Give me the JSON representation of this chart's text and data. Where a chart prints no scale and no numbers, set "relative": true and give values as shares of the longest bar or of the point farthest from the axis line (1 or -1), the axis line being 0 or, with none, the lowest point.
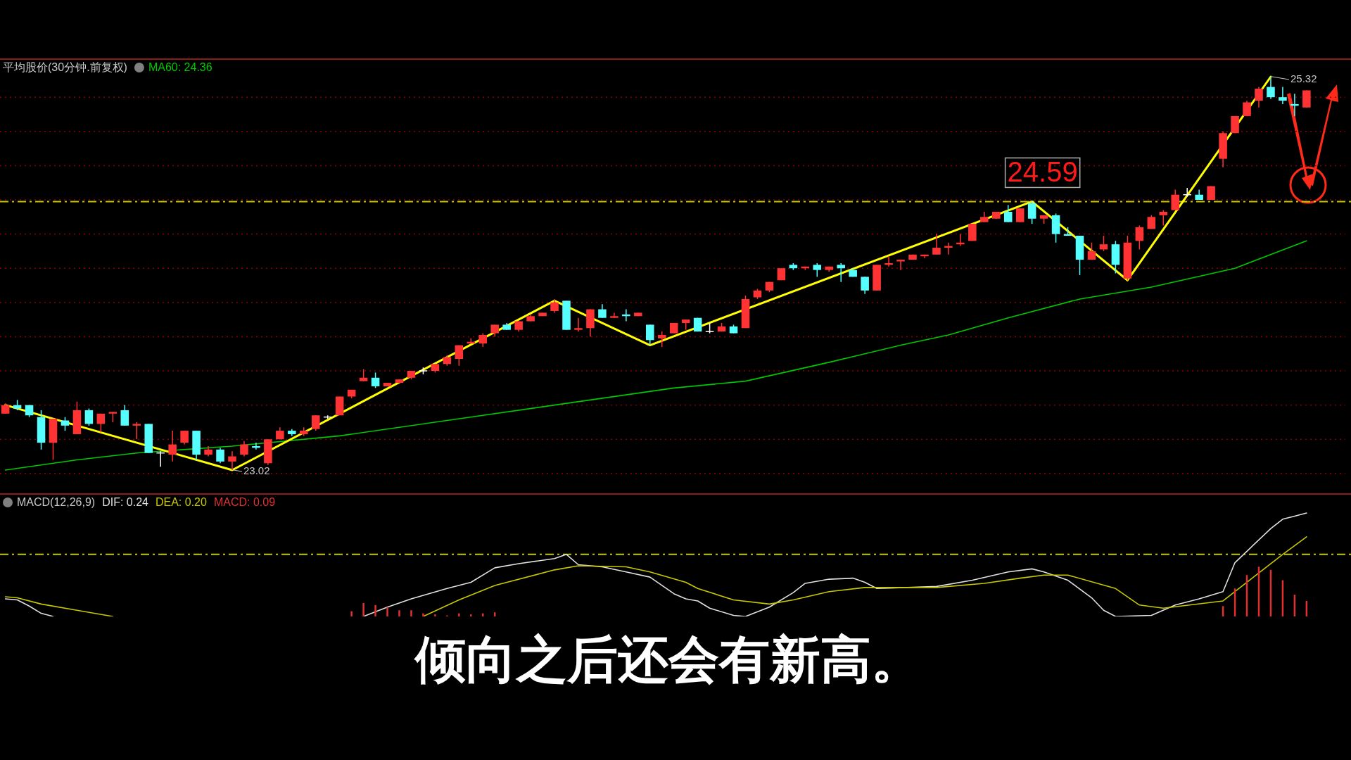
{
  "chart_data": [
    {
      "type": "candlestick",
      "title": "平均股价(30分钟.前复权)",
      "categories": [
        null,
        null,
        null,
        null,
        null,
        null,
        null,
        null,
        null,
        null,
        null,
        null,
        null,
        null,
        null,
        null,
        null,
        null,
        null,
        null,
        null,
        null,
        null,
        null,
        null,
        null,
        null,
        null,
        null,
        null,
        null,
        null,
        null,
        null,
        null,
        null,
        null,
        null,
        null,
        null,
        null,
        null,
        null,
        null,
        null,
        null,
        null,
        null,
        null,
        null,
        null,
        null,
        null,
        null,
        null,
        null,
        null,
        null,
        null,
        null,
        null,
        null,
        null,
        null,
        null,
        null,
        null,
        null,
        null,
        null,
        null,
        null,
        null,
        null,
        null,
        null,
        null,
        null,
        null,
        null,
        null,
        null,
        null,
        null,
        null,
        null,
        null,
        null,
        null,
        null,
        null,
        null,
        null,
        null,
        null,
        null,
        null,
        null,
        null,
        null,
        null,
        null,
        null,
        null,
        null,
        null,
        null,
        null,
        null,
        null
      ],
      "ohlc": [
        [
          23.35,
          23.41,
          23.35,
          23.4
        ],
        [
          23.4,
          23.43,
          23.37,
          23.38
        ],
        [
          23.4,
          23.4,
          23.33,
          23.34
        ],
        [
          23.33,
          23.37,
          23.14,
          23.18
        ],
        [
          23.18,
          23.32,
          23.08,
          23.32
        ],
        [
          23.31,
          23.33,
          23.25,
          23.28
        ],
        [
          23.23,
          23.42,
          23.23,
          23.37
        ],
        [
          23.37,
          23.38,
          23.28,
          23.29
        ],
        [
          23.29,
          23.35,
          23.24,
          23.35
        ],
        [
          23.35,
          23.36,
          23.3,
          23.36
        ],
        [
          23.37,
          23.4,
          23.28,
          23.28
        ],
        [
          23.28,
          23.3,
          23.2,
          23.29
        ],
        [
          23.29,
          23.29,
          23.12,
          23.12
        ],
        [
          23.12,
          23.13,
          23.04,
          23.12
        ],
        [
          23.11,
          23.25,
          23.07,
          23.17
        ],
        [
          23.18,
          23.25,
          23.17,
          23.25
        ],
        [
          23.25,
          23.25,
          23.08,
          23.11
        ],
        [
          23.11,
          23.16,
          23.1,
          23.14
        ],
        [
          23.14,
          23.15,
          23.06,
          23.07
        ],
        [
          23.07,
          23.13,
          23.02,
          23.1
        ],
        [
          23.11,
          23.19,
          23.1,
          23.17
        ],
        [
          23.16,
          23.18,
          23.14,
          23.15
        ],
        [
          23.06,
          23.2,
          23.05,
          23.2
        ],
        [
          23.2,
          23.27,
          23.2,
          23.25
        ],
        [
          23.25,
          23.26,
          23.22,
          23.23
        ],
        [
          23.23,
          23.27,
          23.22,
          23.25
        ],
        [
          23.26,
          23.34,
          23.25,
          23.34
        ],
        [
          23.33,
          23.34,
          23.32,
          23.33
        ],
        [
          23.34,
          23.45,
          23.34,
          23.45
        ],
        [
          23.45,
          23.49,
          23.44,
          23.49
        ],
        [
          23.54,
          23.61,
          23.54,
          23.56
        ],
        [
          23.56,
          23.59,
          23.5,
          23.51
        ],
        [
          23.51,
          23.53,
          23.51,
          23.53
        ],
        [
          23.53,
          23.55,
          23.53,
          23.55
        ],
        [
          23.56,
          23.6,
          23.55,
          23.6
        ],
        [
          23.6,
          23.62,
          23.58,
          23.6
        ],
        [
          23.6,
          23.64,
          23.59,
          23.64
        ],
        [
          23.64,
          23.69,
          23.63,
          23.68
        ],
        [
          23.67,
          23.75,
          23.63,
          23.75
        ],
        [
          23.76,
          23.79,
          23.76,
          23.77
        ],
        [
          23.76,
          23.82,
          23.74,
          23.81
        ],
        [
          23.82,
          23.87,
          23.8,
          23.87
        ],
        [
          23.87,
          23.88,
          23.84,
          23.84
        ],
        [
          23.84,
          23.89,
          23.83,
          23.89
        ],
        [
          23.89,
          23.93,
          23.89,
          23.92
        ],
        [
          23.92,
          23.94,
          23.92,
          23.94
        ],
        [
          23.95,
          24.02,
          23.94,
          24.0
        ],
        [
          24.01,
          24.01,
          23.84,
          23.84
        ],
        [
          23.84,
          23.91,
          23.83,
          23.85
        ],
        [
          23.85,
          23.96,
          23.8,
          23.96
        ],
        [
          23.96,
          23.99,
          23.91,
          23.91
        ],
        [
          23.91,
          23.94,
          23.91,
          23.92
        ],
        [
          23.93,
          23.96,
          23.89,
          23.92
        ],
        [
          23.92,
          23.94,
          23.92,
          23.94
        ],
        [
          23.87,
          23.87,
          23.75,
          23.78
        ],
        [
          23.79,
          23.83,
          23.74,
          23.81
        ],
        [
          23.82,
          23.88,
          23.82,
          23.88
        ],
        [
          23.88,
          23.9,
          23.84,
          23.9
        ],
        [
          23.91,
          23.91,
          23.83,
          23.83
        ],
        [
          23.83,
          23.88,
          23.82,
          23.83
        ],
        [
          23.83,
          23.88,
          23.83,
          23.86
        ],
        [
          23.86,
          23.87,
          23.82,
          23.82
        ],
        [
          23.85,
          24.04,
          23.85,
          24.02
        ],
        [
          24.03,
          24.08,
          24.02,
          24.07
        ],
        [
          24.07,
          24.12,
          24.06,
          24.12
        ],
        [
          24.13,
          24.2,
          24.13,
          24.2
        ],
        [
          24.22,
          24.23,
          24.19,
          24.2
        ],
        [
          24.2,
          24.21,
          24.19,
          24.21
        ],
        [
          24.22,
          24.23,
          24.15,
          24.19
        ],
        [
          24.19,
          24.21,
          24.18,
          24.21
        ],
        [
          24.22,
          24.23,
          24.12,
          24.2
        ],
        [
          24.19,
          24.2,
          24.15,
          24.15
        ],
        [
          24.15,
          24.15,
          24.05,
          24.07
        ],
        [
          24.07,
          24.22,
          24.07,
          24.22
        ],
        [
          24.22,
          24.27,
          24.21,
          24.23
        ],
        [
          24.24,
          24.25,
          24.19,
          24.25
        ],
        [
          24.25,
          24.28,
          24.25,
          24.28
        ],
        [
          24.27,
          24.28,
          24.26,
          24.28
        ],
        [
          24.28,
          24.4,
          24.28,
          24.32
        ],
        [
          24.32,
          24.35,
          24.28,
          24.33
        ],
        [
          24.34,
          24.4,
          24.33,
          24.35
        ],
        [
          24.36,
          24.46,
          24.36,
          24.46
        ],
        [
          24.47,
          24.53,
          24.47,
          24.5
        ],
        [
          24.49,
          24.53,
          24.49,
          24.53
        ],
        [
          24.53,
          24.57,
          24.47,
          24.47
        ],
        [
          24.47,
          24.55,
          24.47,
          24.55
        ],
        [
          24.58,
          24.59,
          24.46,
          24.49
        ],
        [
          24.49,
          24.51,
          24.46,
          24.51
        ],
        [
          24.51,
          24.52,
          24.35,
          24.4
        ],
        [
          24.4,
          24.44,
          24.39,
          24.39
        ],
        [
          24.39,
          24.39,
          24.16,
          24.25
        ],
        [
          24.25,
          24.35,
          24.25,
          24.3
        ],
        [
          24.31,
          24.39,
          24.3,
          24.34
        ],
        [
          24.34,
          24.36,
          24.17,
          24.22
        ],
        [
          24.14,
          24.39,
          24.13,
          24.35
        ],
        [
          24.36,
          24.45,
          24.31,
          24.44
        ],
        [
          24.43,
          24.51,
          24.43,
          24.5
        ],
        [
          24.51,
          24.54,
          24.45,
          24.53
        ],
        [
          24.54,
          24.66,
          24.54,
          24.63
        ],
        [
          24.63,
          24.67,
          24.62,
          24.63
        ],
        [
          24.63,
          24.66,
          24.6,
          24.6
        ],
        [
          24.6,
          24.68,
          24.6,
          24.68
        ],
        [
          24.84,
          25.0,
          24.79,
          24.99
        ],
        [
          24.99,
          25.09,
          24.99,
          25.09
        ],
        [
          25.09,
          25.18,
          25.09,
          25.17
        ],
        [
          25.18,
          25.26,
          25.14,
          25.25
        ],
        [
          25.26,
          25.32,
          25.19,
          25.2
        ],
        [
          25.2,
          25.26,
          25.16,
          25.18
        ],
        [
          25.16,
          25.22,
          25.09,
          25.15
        ],
        [
          25.14,
          25.24,
          25.14,
          25.24
        ]
      ],
      "colors": [
        "#ff3333",
        "#55ffff",
        "#55ffff",
        "#55ffff",
        "#ff3333",
        "#55ffff",
        "#ff3333",
        "#55ffff",
        "#ff3333",
        "#ff3333",
        "#55ffff",
        "#ff3333",
        "#55ffff",
        "#ffffff",
        "#ff3333",
        "#ff3333",
        "#55ffff",
        "#ff3333",
        "#55ffff",
        "#ff3333",
        "#ff3333",
        "#55ffff",
        "#ff3333",
        "#ff3333",
        "#55ffff",
        "#ff3333",
        "#ff3333",
        "#ffffff",
        "#ff3333",
        "#ff3333",
        "#ff3333",
        "#55ffff",
        "#ff3333",
        "#ff3333",
        "#ff3333",
        "#ffffff",
        "#ff3333",
        "#ff3333",
        "#ff3333",
        "#ff3333",
        "#ff3333",
        "#ff3333",
        "#55ffff",
        "#ff3333",
        "#ff3333",
        "#ff3333",
        "#ff3333",
        "#55ffff",
        "#ff3333",
        "#ff3333",
        "#55ffff",
        "#ff3333",
        "#55ffff",
        "#ff3333",
        "#55ffff",
        "#ff3333",
        "#ff3333",
        "#ff3333",
        "#55ffff",
        "#ffffff",
        "#ff3333",
        "#55ffff",
        "#ff3333",
        "#ff3333",
        "#ff3333",
        "#ff3333",
        "#55ffff",
        "#ff3333",
        "#55ffff",
        "#ff3333",
        "#55ffff",
        "#55ffff",
        "#55ffff",
        "#ff3333",
        "#ff3333",
        "#ff3333",
        "#ff3333",
        "#ff3333",
        "#ff3333",
        "#ff3333",
        "#ff3333",
        "#ff3333",
        "#ff3333",
        "#ff3333",
        "#55ffff",
        "#ff3333",
        "#55ffff",
        "#ff3333",
        "#55ffff",
        "#55ffff",
        "#55ffff",
        "#ff3333",
        "#ff3333",
        "#55ffff",
        "#ff3333",
        "#ff3333",
        "#ff3333",
        "#ff3333",
        "#ff3333",
        "#ffffff",
        "#55ffff",
        "#ff3333",
        "#ff3333",
        "#ff3333",
        "#ff3333",
        "#ff3333",
        "#55ffff",
        "#55ffff",
        "#55ffff",
        "#ff3333"
      ],
      "series": [
        {
          "name": "MA60: 24.36",
          "type": "line",
          "color": "#00c800",
          "values": [
            23.02,
            null,
            null,
            null,
            null,
            null,
            23.08,
            null,
            null,
            null,
            null,
            23.12,
            null,
            null,
            null,
            null,
            null,
            null,
            null,
            23.16,
            null,
            null,
            null,
            null,
            null,
            null,
            null,
            null,
            23.22,
            null,
            null,
            null,
            null,
            null,
            null,
            null,
            null,
            23.31,
            null,
            null,
            null,
            null,
            null,
            null,
            null,
            null,
            23.4,
            null,
            null,
            null,
            null,
            null,
            null,
            null,
            null,
            null,
            23.5,
            null,
            null,
            null,
            null,
            null,
            23.54,
            null,
            null,
            null,
            null,
            null,
            null,
            23.65,
            null,
            null,
            null,
            null,
            null,
            23.75,
            null,
            null,
            null,
            23.81,
            null,
            null,
            null,
            null,
            23.91,
            null,
            null,
            null,
            null,
            null,
            24.02,
            null,
            null,
            null,
            null,
            null,
            24.09,
            null,
            null,
            null,
            null,
            null,
            null,
            24.2,
            null,
            null,
            null,
            null,
            null,
            24.36
          ]
        },
        {
          "type": "line",
          "color": "#ffff00",
          "values": [
            23.4,
            null,
            null,
            null,
            null,
            null,
            null,
            null,
            null,
            null,
            null,
            null,
            null,
            null,
            null,
            null,
            null,
            null,
            null,
            23.02,
            null,
            null,
            null,
            null,
            null,
            null,
            null,
            null,
            null,
            null,
            null,
            null,
            null,
            null,
            null,
            null,
            null,
            null,
            null,
            null,
            null,
            null,
            null,
            null,
            null,
            null,
            24.01,
            null,
            null,
            null,
            null,
            null,
            null,
            null,
            23.75,
            null,
            null,
            null,
            null,
            null,
            null,
            null,
            null,
            null,
            null,
            null,
            null,
            null,
            null,
            null,
            null,
            null,
            null,
            null,
            null,
            null,
            null,
            null,
            null,
            null,
            null,
            null,
            null,
            null,
            null,
            null,
            24.59,
            null,
            null,
            null,
            null,
            null,
            null,
            null,
            24.13,
            null,
            null,
            null,
            null,
            null,
            null,
            null,
            null,
            null,
            null,
            null,
            25.32,
            null,
            null,
            null
          ]
        }
      ],
      "yticks": [
        {
          "value": 23.0,
          "label": null
        },
        {
          "value": 23.2,
          "label": null
        },
        {
          "value": 23.4,
          "label": null
        },
        {
          "value": 23.6,
          "label": null
        },
        {
          "value": 23.8,
          "label": null
        },
        {
          "value": 24.0,
          "label": null
        },
        {
          "value": 24.2,
          "label": null
        },
        {
          "value": 24.4,
          "label": null
        },
        {
          "value": 24.6,
          "label": null
        },
        {
          "value": 24.8,
          "label": null
        },
        {
          "value": 25.0,
          "label": null
        },
        {
          "value": 25.2,
          "label": null
        }
      ],
      "grid": "y",
      "ref_lines": [
        {
          "axis": "y",
          "value": 24.59,
          "label": "24.59",
          "color": "#c8c800",
          "line_style": "dashed"
        }
      ],
      "annotations": [
        "23.02",
        "25.32"
      ]
    },
    {
      "type": "line",
      "title": "MACD(12,26,9)",
      "relative": true,
      "categories": [
        null,
        null,
        null,
        null,
        null,
        null,
        null,
        null,
        null,
        null,
        null,
        null,
        null,
        null,
        null,
        null,
        null,
        null,
        null,
        null,
        null,
        null,
        null,
        null,
        null,
        null,
        null,
        null,
        null,
        null,
        null,
        null,
        null,
        null,
        null,
        null,
        null,
        null,
        null,
        null,
        null,
        null,
        null,
        null,
        null,
        null,
        null,
        null,
        null,
        null,
        null,
        null,
        null,
        null,
        null,
        null,
        null,
        null,
        null,
        null,
        null,
        null,
        null,
        null,
        null,
        null,
        null,
        null,
        null,
        null,
        null,
        null,
        null,
        null,
        null,
        null,
        null,
        null,
        null,
        null,
        null,
        null,
        null,
        null,
        null,
        null,
        null,
        null,
        null,
        null,
        null,
        null,
        null,
        null,
        null,
        null,
        null,
        null,
        null,
        null,
        null,
        null,
        null,
        null,
        null,
        null,
        null,
        null,
        null,
        null
      ],
      "series": [
        {
          "name": "DIF: 0.24",
          "color": "#e0e0e0",
          "values": [
            0.17,
            0.16,
            0.1,
            0.03,
            0,
            null,
            null,
            null,
            null,
            null,
            null,
            null,
            null,
            null,
            null,
            null,
            null,
            null,
            null,
            null,
            null,
            null,
            null,
            null,
            null,
            null,
            null,
            null,
            null,
            null,
            0,
            null,
            0.09,
            null,
            0.17,
            null,
            null,
            0.27,
            null,
            0.33,
            null,
            0.47,
            null,
            0.51,
            null,
            null,
            0.56,
            0.6,
            0.5,
            null,
            0.48,
            null,
            0.43,
            null,
            0.38,
            null,
            0.22,
            0.17,
            0.15,
            0.08,
            null,
            0.01,
            0,
            null,
            0.09,
            null,
            0.23,
            0.32,
            null,
            0.36,
            null,
            0.37,
            0.33,
            0.27,
            null,
            null,
            null,
            null,
            0.29,
            null,
            null,
            0.35,
            null,
            null,
            0.43,
            null,
            0.46,
            0.43,
            null,
            0.35,
            null,
            0.18,
            0.06,
            0,
            null,
            null,
            0.01,
            null,
            0.11,
            null,
            0.17,
            null,
            0.24,
            0.52,
            null,
            null,
            0.85,
            0.94,
            0.97,
            1
          ]
        },
        {
          "name": "DEA: 0.20",
          "color": "#c8c800",
          "values": [
            0.19,
            0.18,
            null,
            0.12,
            null,
            null,
            0.06,
            null,
            null,
            0,
            null,
            null,
            null,
            null,
            null,
            null,
            null,
            null,
            null,
            null,
            null,
            null,
            null,
            null,
            null,
            null,
            null,
            null,
            null,
            null,
            null,
            null,
            null,
            null,
            null,
            0,
            null,
            null,
            0.16,
            null,
            null,
            0.3,
            null,
            null,
            null,
            null,
            0.45,
            null,
            0.49,
            null,
            null,
            null,
            0.48,
            null,
            0.43,
            null,
            null,
            0.33,
            0.27,
            null,
            null,
            0.16,
            null,
            null,
            0.12,
            null,
            0.16,
            null,
            null,
            0.24,
            null,
            null,
            0.28,
            null,
            null,
            0.28,
            null,
            null,
            0.28,
            null,
            null,
            null,
            0.32,
            null,
            null,
            0.37,
            null,
            0.4,
            null,
            0.4,
            null,
            null,
            null,
            0.27,
            null,
            0.11,
            null,
            0.08,
            null,
            null,
            null,
            null,
            0.15,
            0.24,
            null,
            null,
            null,
            0.6,
            null,
            0.77
          ]
        },
        {
          "name": "MACD: 0.09",
          "type": "bar",
          "color": "#e03030",
          "values": [
            null,
            null,
            null,
            null,
            null,
            null,
            null,
            null,
            null,
            null,
            null,
            null,
            null,
            null,
            null,
            null,
            null,
            null,
            null,
            null,
            null,
            null,
            null,
            null,
            null,
            null,
            null,
            null,
            null,
            0.05,
            0.13,
            0.11,
            0.09,
            0.06,
            0.06,
            0.03,
            0.02,
            0.01,
            0.03,
            0.02,
            0.03,
            0.04,
            null,
            null,
            null,
            null,
            null,
            null,
            null,
            null,
            null,
            null,
            null,
            null,
            null,
            null,
            null,
            null,
            null,
            null,
            null,
            null,
            null,
            null,
            null,
            null,
            null,
            null,
            null,
            null,
            null,
            null,
            null,
            null,
            null,
            null,
            null,
            null,
            null,
            null,
            null,
            null,
            null,
            null,
            null,
            null,
            null,
            null,
            null,
            null,
            null,
            null,
            null,
            null,
            null,
            null,
            null,
            null,
            null,
            null,
            null,
            null,
            0.1,
            0.27,
            0.4,
            0.48,
            0.45,
            0.35,
            0.21,
            0.15
          ]
        }
      ],
      "ref_lines": [
        {
          "axis": "y",
          "value": 0.6,
          "color": "#c8c800",
          "line_style": "dashed"
        }
      ],
      "annotations": [
        "倾向之后还会有新高。"
      ]
    }
  ]
}
